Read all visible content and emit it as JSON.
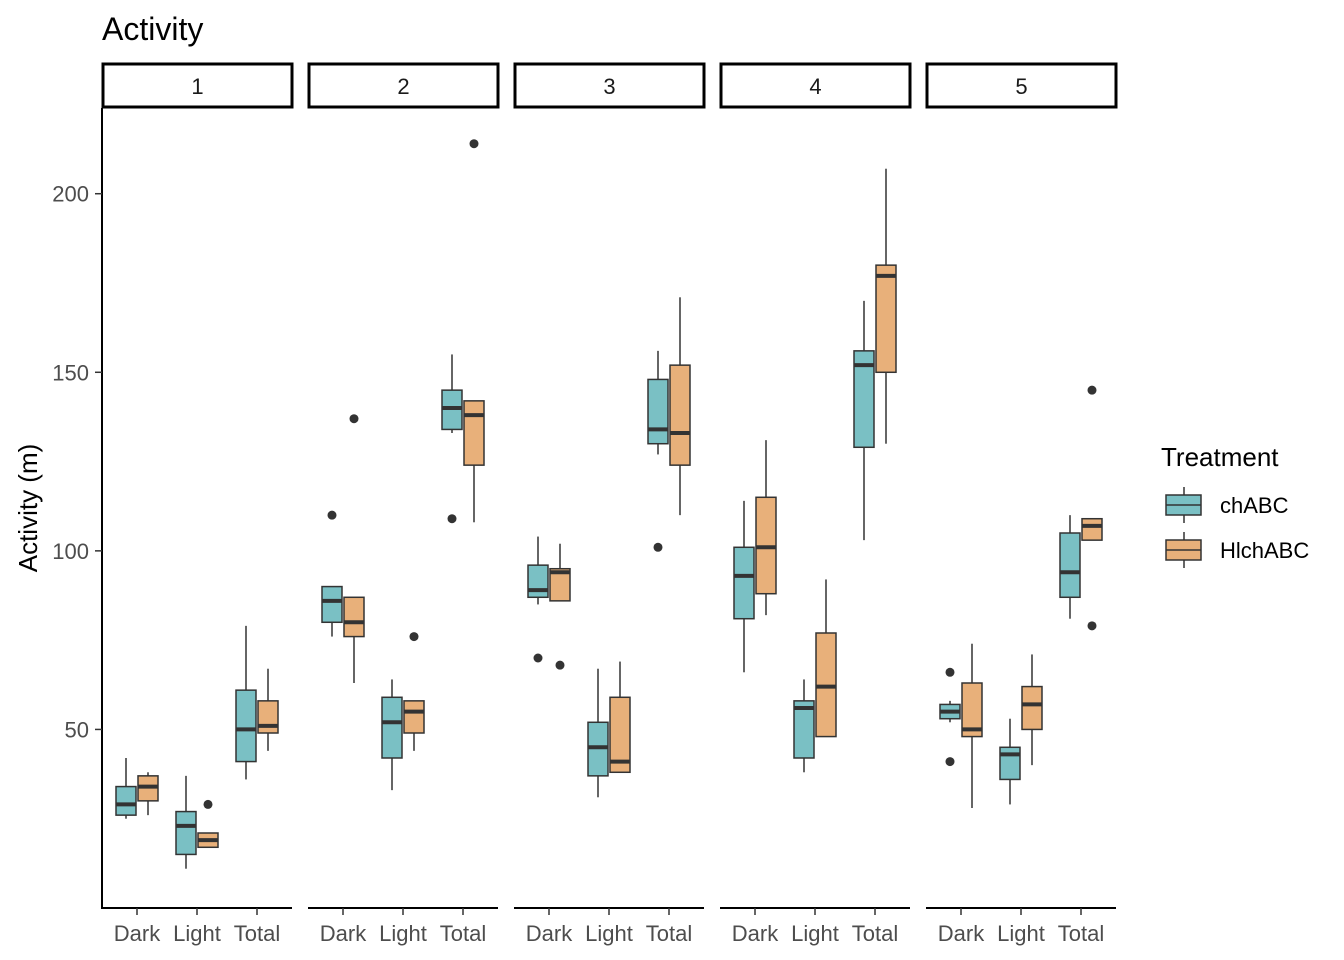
{
  "colors": {
    "chABC": "#7ac0c4",
    "HlchABC": "#e8b07a",
    "outline": "#333333",
    "axis": "#000000"
  },
  "chart_data": {
    "type": "boxplot",
    "title": "Activity",
    "ylabel": "Activity (m)",
    "xlabel": "",
    "ylim": [
      0,
      224
    ],
    "y_ticks": [
      50,
      100,
      150,
      200
    ],
    "categories": [
      "Dark",
      "Light",
      "Total"
    ],
    "facets": [
      "1",
      "2",
      "3",
      "4",
      "5"
    ],
    "grid": false,
    "legend": {
      "title": "Treatment",
      "position": "right",
      "entries": [
        "chABC",
        "HlchABC"
      ]
    },
    "panels": [
      {
        "facet": "1",
        "groups": [
          {
            "category": "Dark",
            "series": [
              {
                "name": "chABC",
                "whisker_low": 25,
                "q1": 26,
                "median": 29,
                "q3": 34,
                "whisker_high": 42,
                "outliers": []
              },
              {
                "name": "HlchABC",
                "whisker_low": 26,
                "q1": 30,
                "median": 34,
                "q3": 37,
                "whisker_high": 38,
                "outliers": []
              }
            ]
          },
          {
            "category": "Light",
            "series": [
              {
                "name": "chABC",
                "whisker_low": 11,
                "q1": 15,
                "median": 23,
                "q3": 27,
                "whisker_high": 37,
                "outliers": []
              },
              {
                "name": "HlchABC",
                "whisker_low": 17,
                "q1": 17,
                "median": 19,
                "q3": 21,
                "whisker_high": 21,
                "outliers": [
                  29
                ]
              }
            ]
          },
          {
            "category": "Total",
            "series": [
              {
                "name": "chABC",
                "whisker_low": 36,
                "q1": 41,
                "median": 50,
                "q3": 61,
                "whisker_high": 79,
                "outliers": []
              },
              {
                "name": "HlchABC",
                "whisker_low": 44,
                "q1": 49,
                "median": 51,
                "q3": 58,
                "whisker_high": 67,
                "outliers": []
              }
            ]
          }
        ]
      },
      {
        "facet": "2",
        "groups": [
          {
            "category": "Dark",
            "series": [
              {
                "name": "chABC",
                "whisker_low": 76,
                "q1": 80,
                "median": 86,
                "q3": 90,
                "whisker_high": 90,
                "outliers": [
                  110
                ]
              },
              {
                "name": "HlchABC",
                "whisker_low": 63,
                "q1": 76,
                "median": 80,
                "q3": 87,
                "whisker_high": 87,
                "outliers": [
                  137
                ]
              }
            ]
          },
          {
            "category": "Light",
            "series": [
              {
                "name": "chABC",
                "whisker_low": 33,
                "q1": 42,
                "median": 52,
                "q3": 59,
                "whisker_high": 64,
                "outliers": []
              },
              {
                "name": "HlchABC",
                "whisker_low": 44,
                "q1": 49,
                "median": 55,
                "q3": 58,
                "whisker_high": 58,
                "outliers": [
                  76
                ]
              }
            ]
          },
          {
            "category": "Total",
            "series": [
              {
                "name": "chABC",
                "whisker_low": 133,
                "q1": 134,
                "median": 140,
                "q3": 145,
                "whisker_high": 155,
                "outliers": [
                  109
                ]
              },
              {
                "name": "HlchABC",
                "whisker_low": 108,
                "q1": 124,
                "median": 138,
                "q3": 142,
                "whisker_high": 142,
                "outliers": [
                  214
                ]
              }
            ]
          }
        ]
      },
      {
        "facet": "3",
        "groups": [
          {
            "category": "Dark",
            "series": [
              {
                "name": "chABC",
                "whisker_low": 85,
                "q1": 87,
                "median": 89,
                "q3": 96,
                "whisker_high": 104,
                "outliers": [
                  70
                ]
              },
              {
                "name": "HlchABC",
                "whisker_low": 86,
                "q1": 86,
                "median": 94,
                "q3": 95,
                "whisker_high": 102,
                "outliers": [
                  68
                ]
              }
            ]
          },
          {
            "category": "Light",
            "series": [
              {
                "name": "chABC",
                "whisker_low": 31,
                "q1": 37,
                "median": 45,
                "q3": 52,
                "whisker_high": 67,
                "outliers": []
              },
              {
                "name": "HlchABC",
                "whisker_low": 38,
                "q1": 38,
                "median": 41,
                "q3": 59,
                "whisker_high": 69,
                "outliers": []
              }
            ]
          },
          {
            "category": "Total",
            "series": [
              {
                "name": "chABC",
                "whisker_low": 127,
                "q1": 130,
                "median": 134,
                "q3": 148,
                "whisker_high": 156,
                "outliers": [
                  101
                ]
              },
              {
                "name": "HlchABC",
                "whisker_low": 110,
                "q1": 124,
                "median": 133,
                "q3": 152,
                "whisker_high": 171,
                "outliers": []
              }
            ]
          }
        ]
      },
      {
        "facet": "4",
        "groups": [
          {
            "category": "Dark",
            "series": [
              {
                "name": "chABC",
                "whisker_low": 66,
                "q1": 81,
                "median": 93,
                "q3": 101,
                "whisker_high": 114,
                "outliers": []
              },
              {
                "name": "HlchABC",
                "whisker_low": 82,
                "q1": 88,
                "median": 101,
                "q3": 115,
                "whisker_high": 131,
                "outliers": []
              }
            ]
          },
          {
            "category": "Light",
            "series": [
              {
                "name": "chABC",
                "whisker_low": 38,
                "q1": 42,
                "median": 56,
                "q3": 58,
                "whisker_high": 64,
                "outliers": []
              },
              {
                "name": "HlchABC",
                "whisker_low": 48,
                "q1": 48,
                "median": 62,
                "q3": 77,
                "whisker_high": 92,
                "outliers": []
              }
            ]
          },
          {
            "category": "Total",
            "series": [
              {
                "name": "chABC",
                "whisker_low": 103,
                "q1": 129,
                "median": 152,
                "q3": 156,
                "whisker_high": 170,
                "outliers": []
              },
              {
                "name": "HlchABC",
                "whisker_low": 130,
                "q1": 150,
                "median": 177,
                "q3": 180,
                "whisker_high": 207,
                "outliers": []
              }
            ]
          }
        ]
      },
      {
        "facet": "5",
        "groups": [
          {
            "category": "Dark",
            "series": [
              {
                "name": "chABC",
                "whisker_low": 52,
                "q1": 53,
                "median": 55,
                "q3": 57,
                "whisker_high": 58,
                "outliers": [
                  66,
                  41
                ]
              },
              {
                "name": "HlchABC",
                "whisker_low": 28,
                "q1": 48,
                "median": 50,
                "q3": 63,
                "whisker_high": 74,
                "outliers": []
              }
            ]
          },
          {
            "category": "Light",
            "series": [
              {
                "name": "chABC",
                "whisker_low": 29,
                "q1": 36,
                "median": 43,
                "q3": 45,
                "whisker_high": 53,
                "outliers": []
              },
              {
                "name": "HlchABC",
                "whisker_low": 40,
                "q1": 50,
                "median": 57,
                "q3": 62,
                "whisker_high": 71,
                "outliers": []
              }
            ]
          },
          {
            "category": "Total",
            "series": [
              {
                "name": "chABC",
                "whisker_low": 81,
                "q1": 87,
                "median": 94,
                "q3": 105,
                "whisker_high": 110,
                "outliers": []
              },
              {
                "name": "HlchABC",
                "whisker_low": 103,
                "q1": 103,
                "median": 107,
                "q3": 109,
                "whisker_high": 109,
                "outliers": [
                  145,
                  79
                ]
              }
            ]
          }
        ]
      }
    ]
  }
}
